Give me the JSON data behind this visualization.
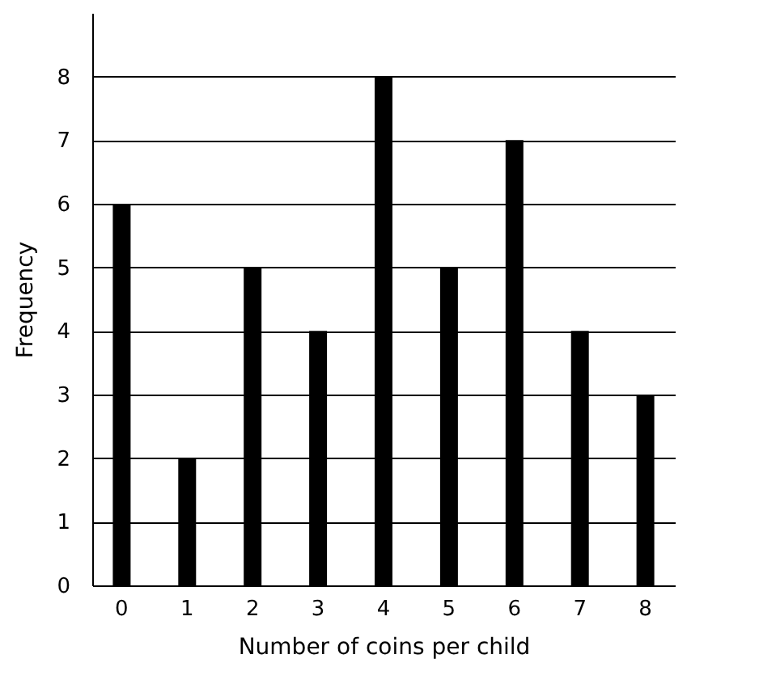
{
  "chart_data": {
    "type": "bar",
    "xlabel": "Number of coins per child",
    "ylabel": "Frequency",
    "categories": [
      "0",
      "1",
      "2",
      "3",
      "4",
      "5",
      "6",
      "7",
      "8"
    ],
    "values": [
      6,
      2,
      5,
      4,
      8,
      5,
      7,
      4,
      3
    ],
    "color": "#000000",
    "ylim": [
      0,
      9
    ],
    "yticks": [
      0,
      1,
      2,
      3,
      4,
      5,
      6,
      7,
      8
    ],
    "grid": "y"
  }
}
